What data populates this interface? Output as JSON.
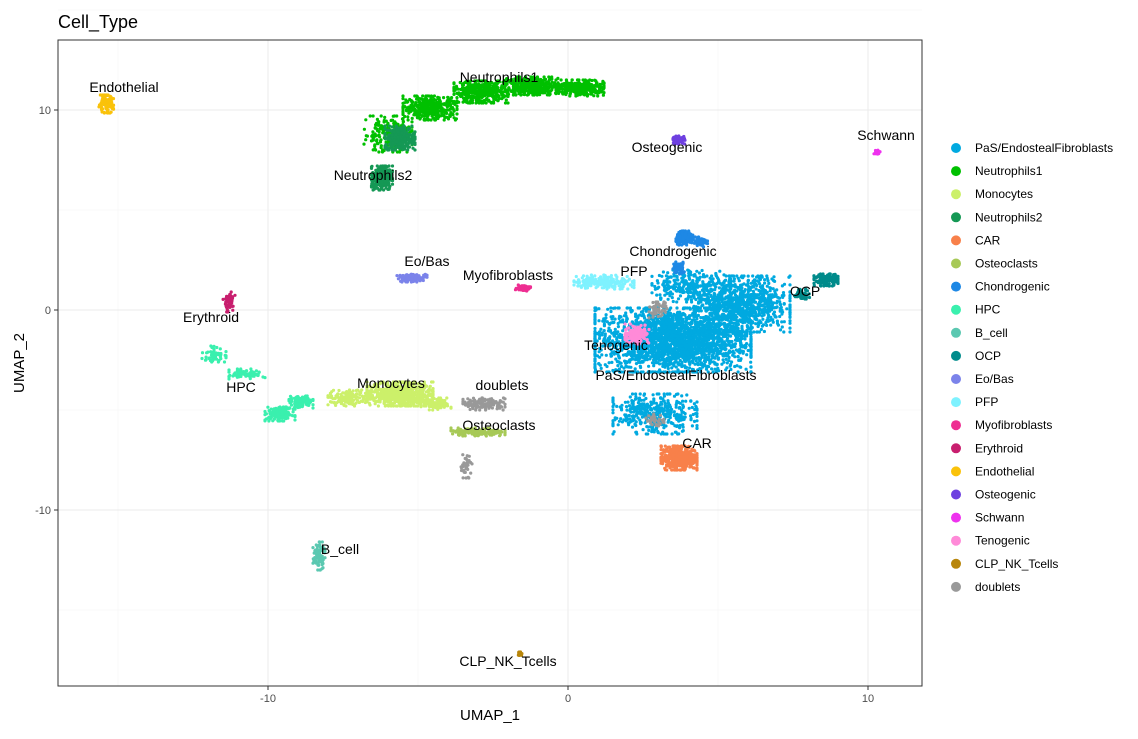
{
  "chart_data": {
    "type": "scatter",
    "title": "Cell_Type",
    "xlabel": "UMAP_1",
    "ylabel": "UMAP_2",
    "xlim": [
      -17,
      11.8
    ],
    "ylim": [
      -18.8,
      13.5
    ],
    "xticks": [
      -10,
      0,
      10
    ],
    "yticks": [
      10,
      0,
      -10
    ],
    "grid": true,
    "legend_position": "right",
    "clusters": [
      {
        "name": "PaS/EndostealFibroblasts",
        "color": "#00A9E0",
        "label_x": 3.6,
        "label_y": -3.5,
        "points": [
          [
            3.5,
            -1.5,
            2.6,
            1.6,
            2400
          ],
          [
            5.8,
            0.3,
            1.6,
            1.4,
            900
          ],
          [
            2.9,
            -5.2,
            1.4,
            1.0,
            400
          ],
          [
            4.0,
            1.2,
            1.2,
            0.8,
            250
          ]
        ]
      },
      {
        "name": "Neutrophils1",
        "color": "#00C000",
        "label_x": -2.3,
        "label_y": 11.4,
        "points": [
          [
            -6.0,
            8.8,
            0.8,
            0.9,
            200
          ],
          [
            -4.6,
            10.1,
            0.9,
            0.6,
            400
          ],
          [
            -2.9,
            10.9,
            0.9,
            0.55,
            450
          ],
          [
            -1.2,
            11.2,
            0.9,
            0.45,
            450
          ],
          [
            0.4,
            11.1,
            0.8,
            0.4,
            300
          ]
        ]
      },
      {
        "name": "Monocytes",
        "color": "#CCF06A",
        "label_x": -5.9,
        "label_y": -3.9,
        "points": [
          [
            -5.6,
            -4.2,
            1.1,
            0.6,
            700
          ],
          [
            -7.3,
            -4.4,
            0.7,
            0.4,
            150
          ],
          [
            -4.4,
            -4.7,
            0.5,
            0.3,
            100
          ]
        ]
      },
      {
        "name": "Neutrophils2",
        "color": "#159855",
        "label_x": -6.5,
        "label_y": 6.5,
        "points": [
          [
            -6.2,
            6.6,
            0.35,
            0.6,
            300
          ],
          [
            -5.6,
            8.6,
            0.5,
            0.6,
            300
          ]
        ]
      },
      {
        "name": "CAR",
        "color": "#F8804A",
        "label_x": 4.3,
        "label_y": -6.9,
        "points": [
          [
            3.7,
            -7.4,
            0.6,
            0.6,
            500
          ]
        ]
      },
      {
        "name": "Osteoclasts",
        "color": "#A7C957",
        "label_x": -2.3,
        "label_y": -6.0,
        "points": [
          [
            -3.0,
            -6.1,
            0.9,
            0.2,
            150
          ]
        ]
      },
      {
        "name": "Chondrogenic",
        "color": "#1E88E5",
        "label_x": 3.5,
        "label_y": 2.7,
        "points": [
          [
            3.9,
            3.6,
            0.3,
            0.35,
            150
          ],
          [
            4.4,
            3.4,
            0.25,
            0.25,
            60
          ],
          [
            3.7,
            2.1,
            0.2,
            0.3,
            60
          ]
        ]
      },
      {
        "name": "HPC",
        "color": "#3AF0AE",
        "label_x": -10.9,
        "label_y": -4.1,
        "points": [
          [
            -11.8,
            -2.2,
            0.4,
            0.4,
            60
          ],
          [
            -9.6,
            -5.2,
            0.5,
            0.35,
            150
          ],
          [
            -8.9,
            -4.6,
            0.4,
            0.3,
            100
          ],
          [
            -10.7,
            -3.2,
            0.6,
            0.25,
            80
          ]
        ]
      },
      {
        "name": "B_cell",
        "color": "#5BC8B1",
        "label_x": -7.6,
        "label_y": -12.2,
        "points": [
          [
            -8.3,
            -12.3,
            0.2,
            0.7,
            90
          ]
        ]
      },
      {
        "name": "OCP",
        "color": "#008B8B",
        "label_x": 7.9,
        "label_y": 0.7,
        "points": [
          [
            8.6,
            1.5,
            0.4,
            0.3,
            150
          ],
          [
            7.8,
            0.8,
            0.25,
            0.25,
            60
          ]
        ]
      },
      {
        "name": "Eo/Bas",
        "color": "#7B83EA",
        "label_x": -4.7,
        "label_y": 2.2,
        "points": [
          [
            -5.2,
            1.6,
            0.5,
            0.2,
            100
          ]
        ]
      },
      {
        "name": "PFP",
        "color": "#7EF2FF",
        "label_x": 2.2,
        "label_y": 1.7,
        "points": [
          [
            1.2,
            1.4,
            1.0,
            0.35,
            200
          ]
        ]
      },
      {
        "name": "Myofibroblasts",
        "color": "#EE2E92",
        "label_x": -2.0,
        "label_y": 1.5,
        "points": [
          [
            -1.5,
            1.1,
            0.25,
            0.15,
            60
          ]
        ]
      },
      {
        "name": "Erythroid",
        "color": "#C81E6E",
        "label_x": -11.9,
        "label_y": -0.6,
        "points": [
          [
            -11.3,
            0.4,
            0.2,
            0.5,
            50
          ]
        ]
      },
      {
        "name": "Endothelial",
        "color": "#FAC20A",
        "label_x": -14.8,
        "label_y": 10.9,
        "points": [
          [
            -15.4,
            10.3,
            0.25,
            0.45,
            120
          ]
        ]
      },
      {
        "name": "Osteogenic",
        "color": "#6E40E0",
        "label_x": 3.3,
        "label_y": 7.9,
        "points": [
          [
            3.7,
            8.5,
            0.2,
            0.2,
            80
          ]
        ]
      },
      {
        "name": "Schwann",
        "color": "#EE32EE",
        "label_x": 10.6,
        "label_y": 8.5,
        "points": [
          [
            10.3,
            7.9,
            0.1,
            0.1,
            30
          ]
        ]
      },
      {
        "name": "Tenogenic",
        "color": "#FF8AD8",
        "label_x": 1.6,
        "label_y": -2.0,
        "points": [
          [
            2.3,
            -1.2,
            0.4,
            0.5,
            150
          ]
        ]
      },
      {
        "name": "CLP_NK_Tcells",
        "color": "#B8860B",
        "label_x": -2.0,
        "label_y": -17.8,
        "points": [
          [
            -1.6,
            -17.2,
            0.1,
            0.1,
            20
          ]
        ]
      },
      {
        "name": "doublets",
        "color": "#999999",
        "label_x": -2.2,
        "label_y": -4.0,
        "points": [
          [
            -2.8,
            -4.7,
            0.7,
            0.3,
            150
          ],
          [
            -3.4,
            -7.8,
            0.2,
            0.6,
            40
          ],
          [
            3.0,
            0.0,
            0.3,
            0.4,
            60
          ],
          [
            2.9,
            -5.5,
            0.3,
            0.3,
            30
          ]
        ]
      }
    ]
  }
}
